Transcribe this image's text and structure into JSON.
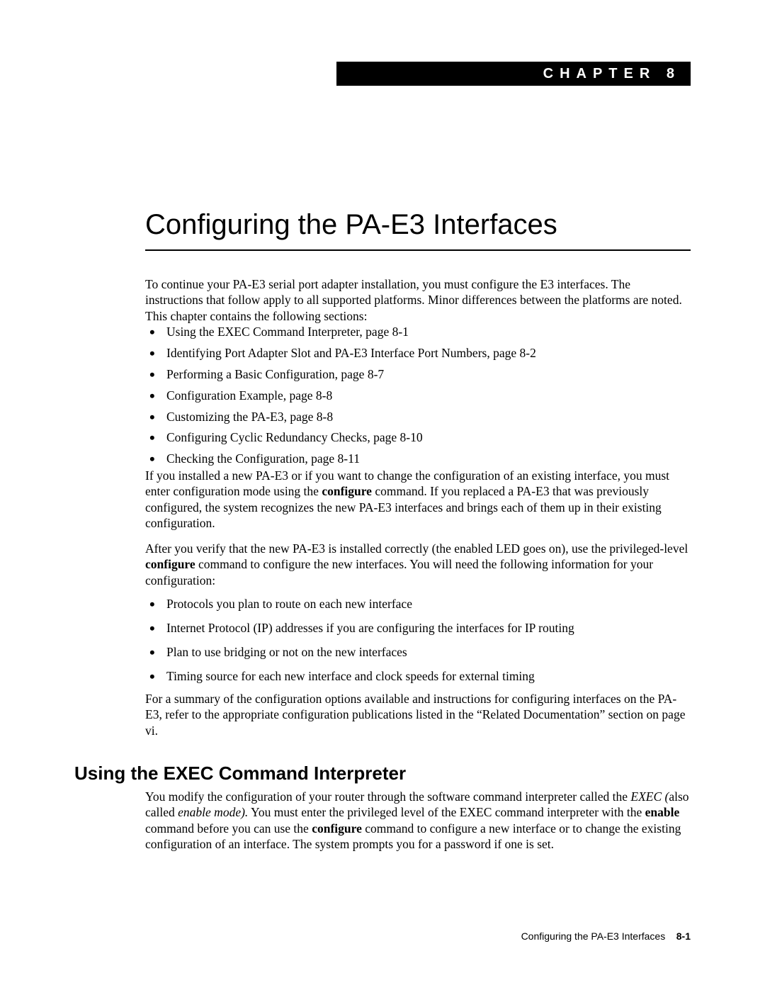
{
  "chapter": {
    "label": "CHAPTER",
    "number": "8",
    "title": "Configuring the PA-E3 Interfaces"
  },
  "intro": "To continue your PA-E3 serial port adapter installation, you must configure the E3 interfaces. The instructions that follow apply to all supported platforms. Minor differences between the platforms are noted. This chapter contains the following sections:",
  "toc": [
    "Using the EXEC Command Interpreter, page 8-1",
    "Identifying Port Adapter Slot and PA-E3 Interface Port Numbers, page 8-2",
    "Performing a Basic Configuration, page 8-7",
    "Configuration Example, page 8-8",
    "Customizing the PA-E3, page 8-8",
    "Configuring Cyclic Redundancy Checks, page 8-10",
    "Checking the Configuration, page 8-11"
  ],
  "para2": {
    "pre": "If you installed a new PA-E3 or if you want to change the configuration of an existing interface, you must enter configuration mode using the ",
    "bold": "configure",
    "post": " command. If you replaced a PA-E3 that was previously configured, the system recognizes the new PA-E3 interfaces and brings each of them up in their existing configuration."
  },
  "para3": {
    "pre": "After you verify that the new PA-E3 is installed correctly (the enabled LED goes on), use the privileged-level ",
    "bold": "configure",
    "post": " command to configure the new interfaces. You will need the following information for your configuration:"
  },
  "info_list": [
    "Protocols you plan to route on each new interface",
    "Internet Protocol (IP) addresses if you are configuring the interfaces for IP routing",
    "Plan to use bridging or not on the new interfaces",
    "Timing source for each new interface and clock speeds for external timing"
  ],
  "para4": "For a summary of the configuration options available and instructions for configuring interfaces on the PA-E3, refer to the appropriate configuration publications listed in the “Related Documentation” section on page vi.",
  "section_heading": "Using the EXEC Command Interpreter",
  "para5": {
    "t1": "You modify the configuration of your router through the software command interpreter called the ",
    "i1": "EXEC (",
    "t2": "also called ",
    "i2": "enable mode).",
    "t3": " You must enter the privileged level of the EXEC command interpreter with the ",
    "b1": "enable",
    "t4": " command before you can use the ",
    "b2": "configure",
    "t5": " command to configure a new interface or to change the existing configuration of an interface. The system prompts you for a password if one is set."
  },
  "footer": {
    "title": "Configuring the PA-E3 Interfaces",
    "page": "8-1"
  },
  "colors": {
    "text": "#000000",
    "background": "#ffffff",
    "bar_bg": "#000000",
    "bar_fg": "#ffffff"
  },
  "typography": {
    "body_family": "Times New Roman",
    "heading_family": "Arial",
    "body_size_pt": 13,
    "chapter_title_size_pt": 30,
    "section_heading_size_pt": 20
  }
}
